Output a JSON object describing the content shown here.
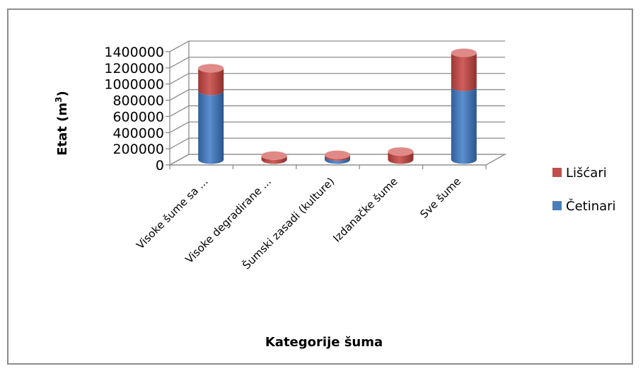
{
  "chart_data": {
    "type": "bar",
    "style": "3d-stacked-cylinder",
    "title": "",
    "xlabel": "Kategorije šuma",
    "ylabel": "Etat (m³)",
    "ylim": [
      0,
      1400000
    ],
    "yticks": [
      0,
      200000,
      400000,
      600000,
      800000,
      1000000,
      1200000,
      1400000
    ],
    "yticks_labels": [
      "0",
      "200000",
      "400000",
      "600000",
      "800000",
      "1000000",
      "1200000",
      "1400000"
    ],
    "grid": true,
    "legend_position": "right",
    "categories": [
      "Visoke šume sa ...",
      "Visoke degradirane ...",
      "Šumski zasadi (kulture)",
      "Izdanačke šume",
      "Sve šume"
    ],
    "series": [
      {
        "name": "Četinari",
        "color": "#4a7ebb",
        "values": [
          850000,
          0,
          40000,
          0,
          900000
        ]
      },
      {
        "name": "Lišćari",
        "color": "#c0504d",
        "values": [
          280000,
          50000,
          20000,
          100000,
          420000
        ]
      }
    ]
  }
}
